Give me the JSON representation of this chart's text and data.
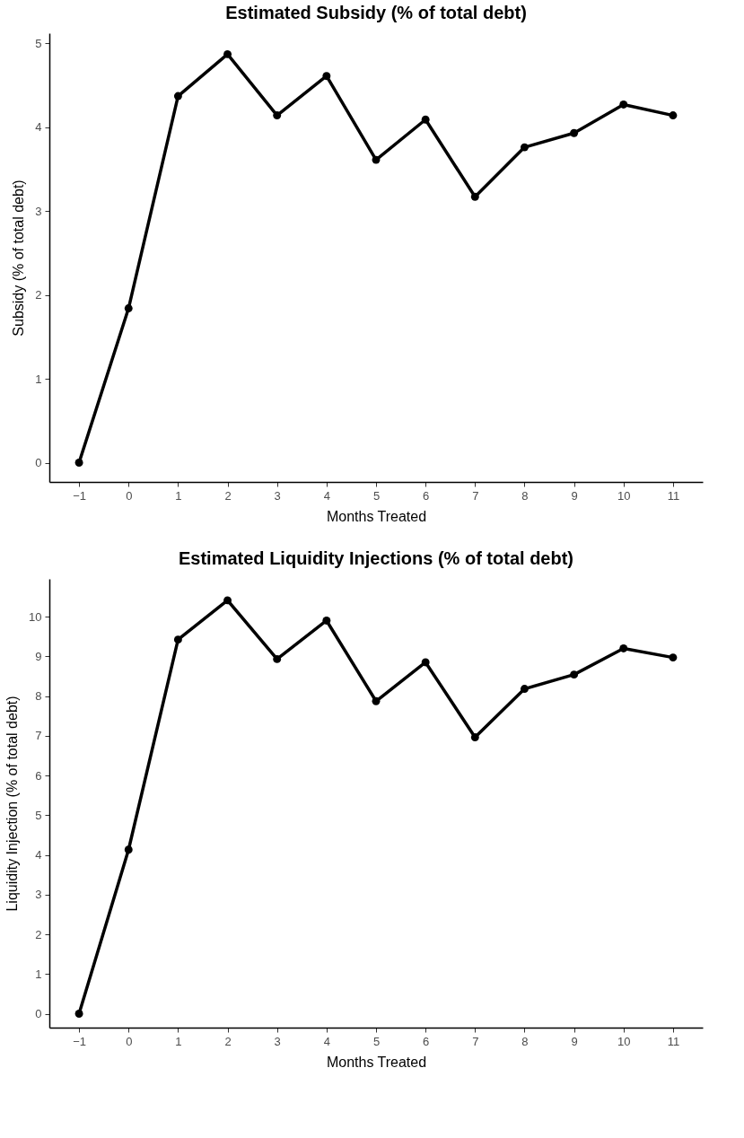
{
  "chart_data": [
    {
      "type": "line",
      "title": "Estimated Subsidy (% of total debt)",
      "xlabel": "Months Treated",
      "ylabel": "Subsidy (% of total debt)",
      "x": [
        -1,
        0,
        1,
        2,
        3,
        4,
        5,
        6,
        7,
        8,
        9,
        10,
        11
      ],
      "series": [
        {
          "color": "#000000",
          "values": [
            0,
            1.84,
            4.37,
            4.87,
            4.14,
            4.61,
            3.61,
            4.09,
            3.17,
            3.76,
            3.93,
            4.27,
            4.14
          ]
        }
      ],
      "xlim": [
        -1.6,
        11.6
      ],
      "xticks": [
        {
          "value": -1,
          "label": "−1"
        },
        0,
        1,
        2,
        3,
        4,
        5,
        6,
        7,
        8,
        9,
        10,
        11
      ],
      "ylim": [
        -0.23,
        5.12
      ],
      "yticks": [
        0,
        1,
        2,
        3,
        4,
        5
      ],
      "grid": false,
      "marker": "circle",
      "line_style": "solid"
    },
    {
      "type": "line",
      "title": "Estimated Liquidity Injections (% of total debt)",
      "xlabel": "Months Treated",
      "ylabel": "Liquidity Injection (% of total debt)",
      "x": [
        -1,
        0,
        1,
        2,
        3,
        4,
        5,
        6,
        7,
        8,
        9,
        10,
        11
      ],
      "series": [
        {
          "color": "#000000",
          "values": [
            0,
            4.13,
            9.42,
            10.41,
            8.93,
            9.9,
            7.87,
            8.85,
            6.96,
            8.18,
            8.54,
            9.2,
            8.97
          ]
        }
      ],
      "xlim": [
        -1.6,
        11.6
      ],
      "xticks": [
        {
          "value": -1,
          "label": "−1"
        },
        0,
        1,
        2,
        3,
        4,
        5,
        6,
        7,
        8,
        9,
        10,
        11
      ],
      "ylim": [
        -0.35,
        10.95
      ],
      "yticks": [
        0,
        1,
        2,
        3,
        4,
        5,
        6,
        7,
        8,
        9,
        10
      ],
      "grid": false,
      "marker": "circle",
      "line_style": "solid"
    }
  ]
}
